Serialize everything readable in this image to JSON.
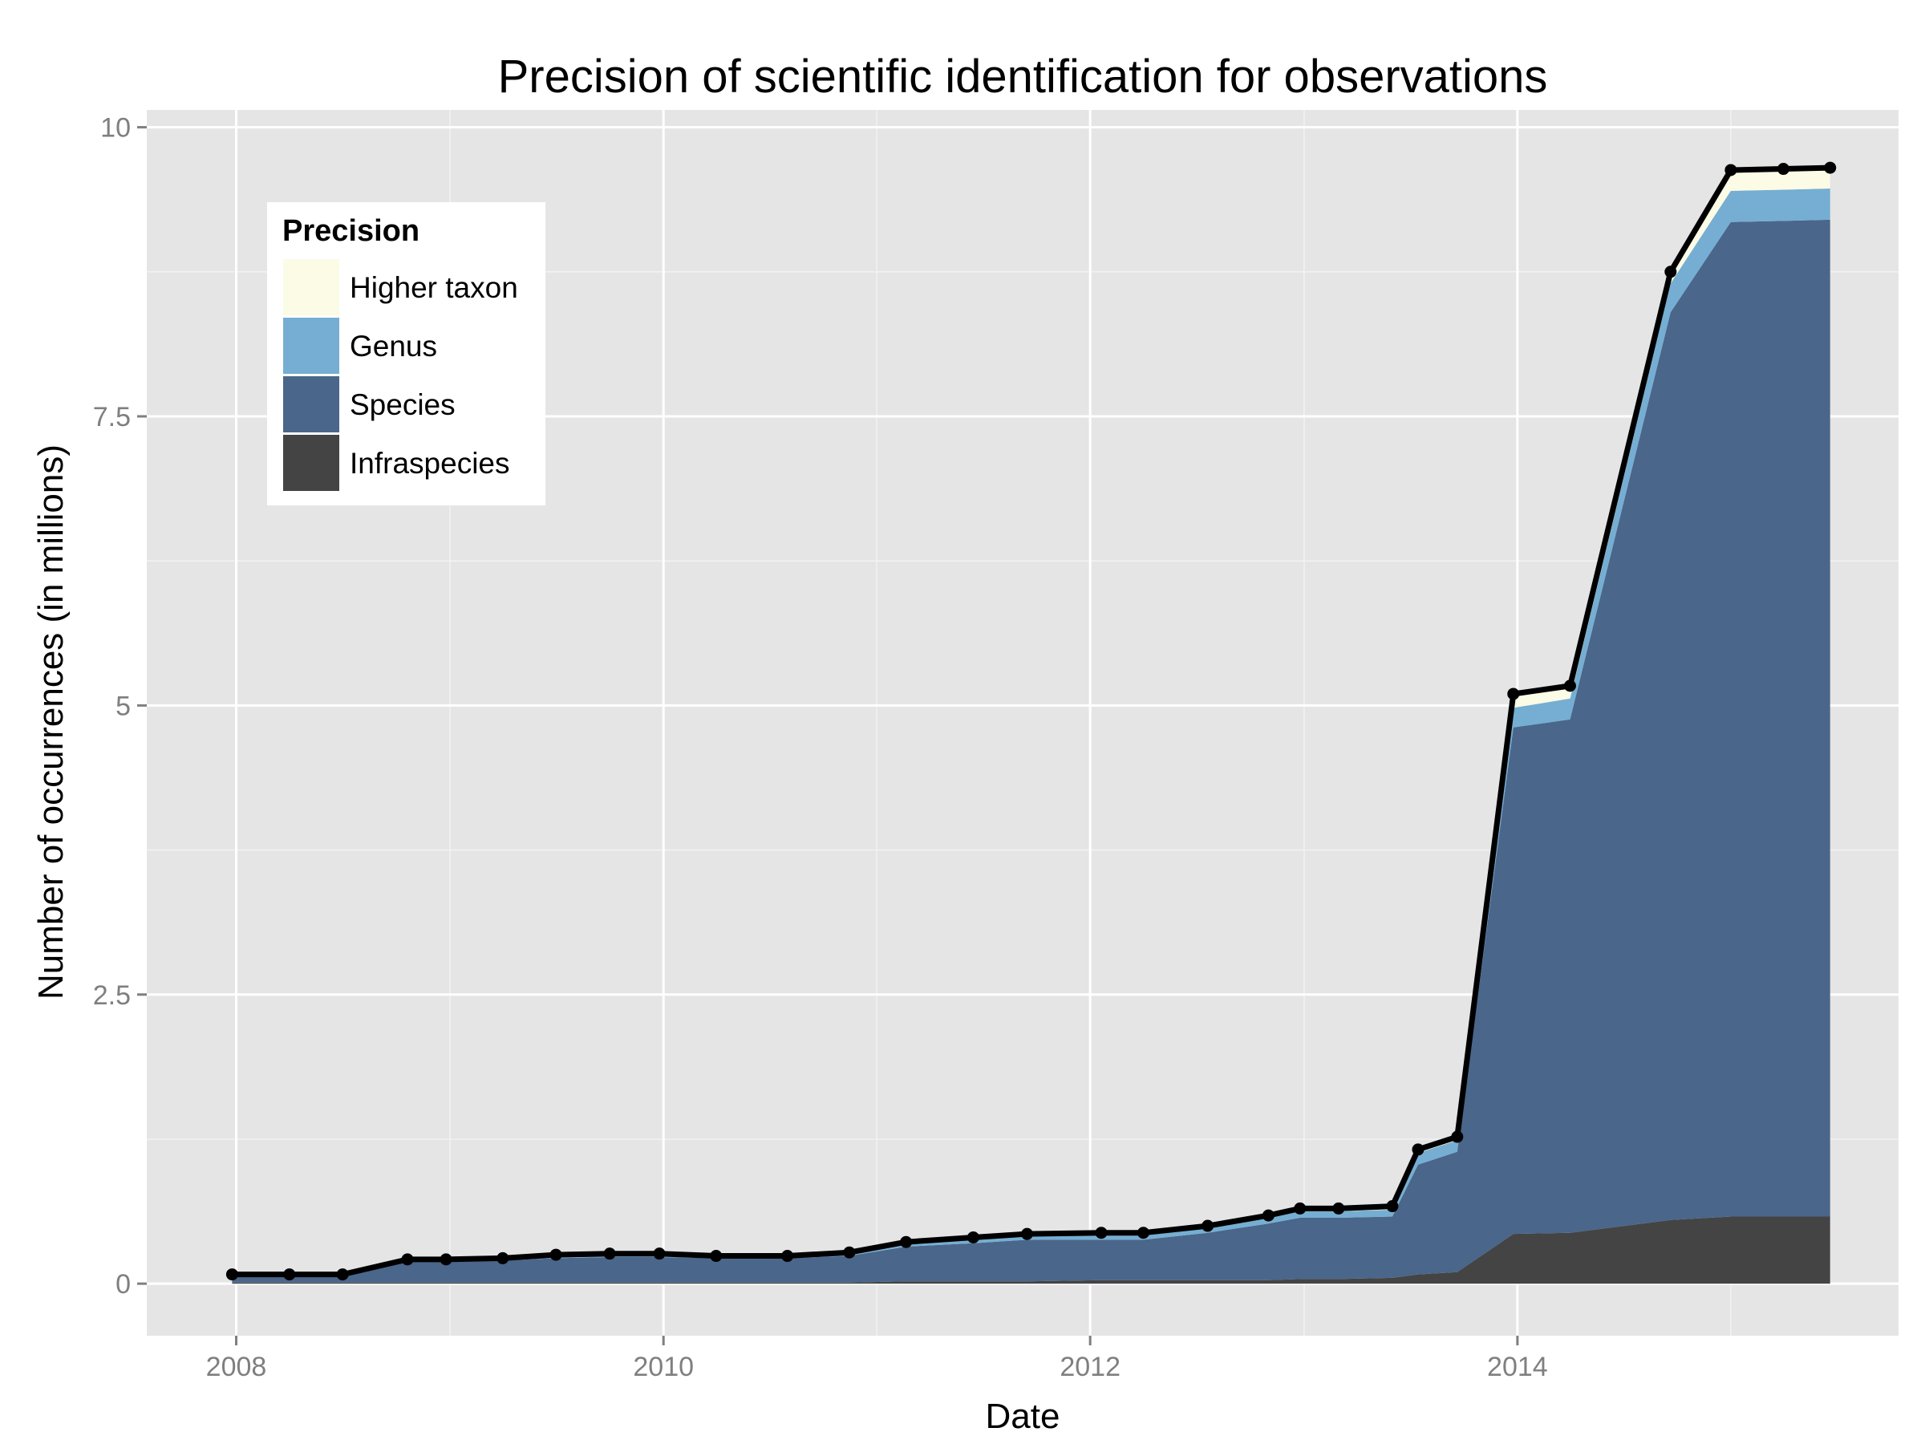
{
  "chart_data": {
    "type": "area",
    "stacked": true,
    "title": "Precision of scientific identification for observations",
    "xlabel": "Date",
    "ylabel": "Number of occurrences (in millions)",
    "xlim": [
      "2007-08-01",
      "2015-10-15"
    ],
    "ylim": [
      -0.45,
      10.15
    ],
    "x_ticks": [
      {
        "date": "2008-01-01",
        "label": "2008"
      },
      {
        "date": "2010-01-01",
        "label": "2010"
      },
      {
        "date": "2012-01-01",
        "label": "2012"
      },
      {
        "date": "2014-01-01",
        "label": "2014"
      }
    ],
    "x_minor_ticks": [
      "2009-01-01",
      "2011-01-01",
      "2013-01-01",
      "2015-01-01"
    ],
    "y_ticks": [
      {
        "value": 0,
        "label": "0"
      },
      {
        "value": 2.5,
        "label": "2.5"
      },
      {
        "value": 5,
        "label": "5"
      },
      {
        "value": 7.5,
        "label": "7.5"
      },
      {
        "value": 10,
        "label": "10"
      }
    ],
    "y_minor_ticks": [
      1.25,
      3.75,
      6.25,
      8.75
    ],
    "grid": true,
    "legend": {
      "title": "Precision",
      "position": "top-left"
    },
    "x": [
      "2007-12-25",
      "2008-04-01",
      "2008-07-01",
      "2008-10-20",
      "2008-12-25",
      "2009-04-01",
      "2009-07-01",
      "2009-10-01",
      "2009-12-25",
      "2010-04-01",
      "2010-08-01",
      "2010-11-15",
      "2011-02-20",
      "2011-06-15",
      "2011-09-15",
      "2012-01-20",
      "2012-04-01",
      "2012-07-20",
      "2012-11-01",
      "2012-12-25",
      "2013-03-01",
      "2013-06-01",
      "2013-07-15",
      "2013-09-20",
      "2013-12-25",
      "2014-04-01",
      "2014-09-20",
      "2015-01-01",
      "2015-04-01",
      "2015-06-20"
    ],
    "total": [
      0.08,
      0.08,
      0.08,
      0.21,
      0.21,
      0.22,
      0.25,
      0.26,
      0.26,
      0.24,
      0.24,
      0.27,
      0.36,
      0.4,
      0.43,
      0.44,
      0.44,
      0.5,
      0.59,
      0.65,
      0.65,
      0.67,
      1.16,
      1.27,
      5.1,
      5.17,
      8.75,
      9.63,
      9.64,
      9.65
    ],
    "series": [
      {
        "name": "Infraspecies",
        "color": "#444444",
        "values": [
          0.01,
          0.01,
          0.01,
          0.01,
          0.01,
          0.01,
          0.01,
          0.01,
          0.01,
          0.01,
          0.01,
          0.01,
          0.02,
          0.02,
          0.02,
          0.03,
          0.03,
          0.03,
          0.03,
          0.04,
          0.04,
          0.05,
          0.08,
          0.1,
          0.43,
          0.44,
          0.55,
          0.58,
          0.58,
          0.58
        ]
      },
      {
        "name": "Species",
        "color": "#4a668a",
        "values": [
          0.06,
          0.06,
          0.06,
          0.18,
          0.18,
          0.19,
          0.21,
          0.22,
          0.22,
          0.21,
          0.21,
          0.23,
          0.3,
          0.33,
          0.36,
          0.35,
          0.35,
          0.41,
          0.49,
          0.53,
          0.53,
          0.53,
          0.95,
          1.04,
          4.38,
          4.44,
          7.85,
          8.6,
          8.61,
          8.62
        ]
      },
      {
        "name": "Genus",
        "color": "#75aed2",
        "values": [
          0.005,
          0.005,
          0.005,
          0.015,
          0.015,
          0.015,
          0.02,
          0.02,
          0.02,
          0.015,
          0.015,
          0.025,
          0.03,
          0.04,
          0.04,
          0.04,
          0.04,
          0.045,
          0.05,
          0.055,
          0.055,
          0.06,
          0.1,
          0.1,
          0.17,
          0.18,
          0.25,
          0.27,
          0.27,
          0.27
        ]
      },
      {
        "name": "Higher taxon",
        "color": "#fbfbe6",
        "values": [
          0.005,
          0.005,
          0.005,
          0.005,
          0.005,
          0.005,
          0.01,
          0.01,
          0.01,
          0.015,
          0.015,
          0.005,
          0.01,
          0.01,
          0.01,
          0.02,
          0.02,
          0.015,
          0.02,
          0.025,
          0.025,
          0.03,
          0.03,
          0.03,
          0.12,
          0.11,
          0.1,
          0.18,
          0.18,
          0.18
        ]
      }
    ]
  }
}
